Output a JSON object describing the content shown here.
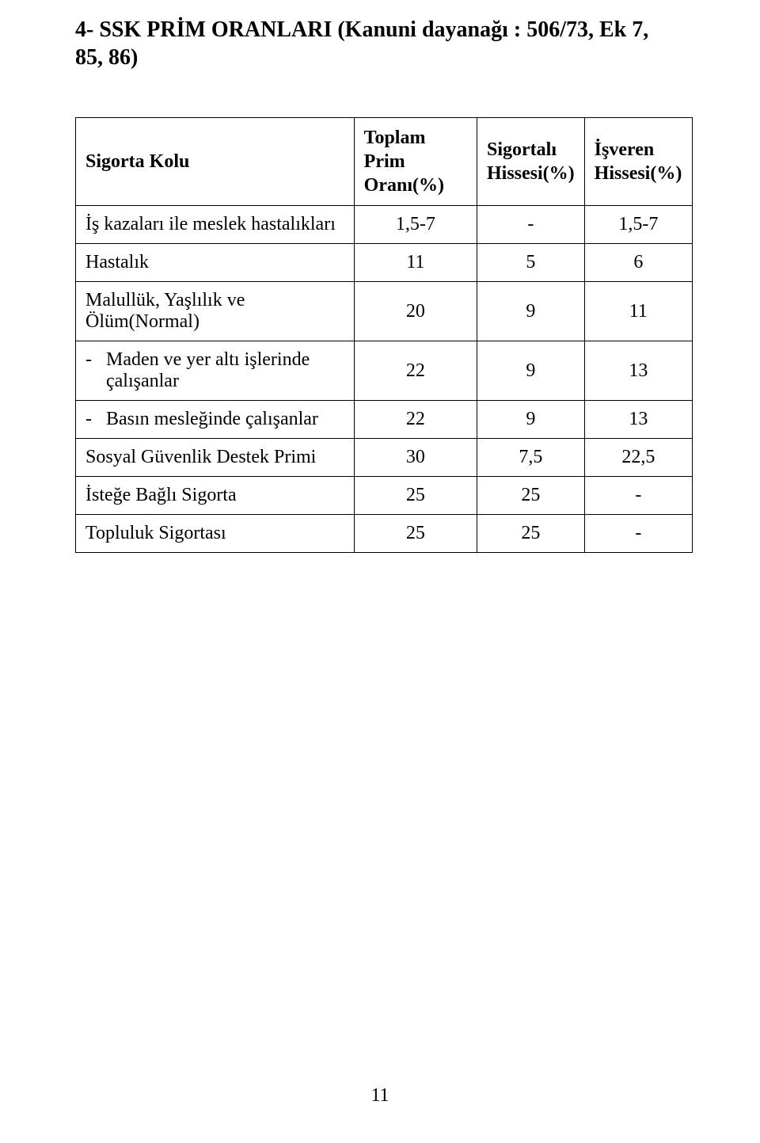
{
  "title_line1": "4- SSK PRİM ORANLARI (Kanuni dayanağı : 506/73, Ek 7,",
  "title_line2": "85, 86)",
  "headers": {
    "col1": "Sigorta Kolu",
    "col2a": "Toplam Prim",
    "col2b": "Oranı(%)",
    "col3a": "Sigortalı",
    "col3b": "Hissesi(%)",
    "col4a": "İşveren",
    "col4b": "Hissesi(%)"
  },
  "rows": [
    {
      "label": "İş kazaları ile meslek hastalıkları",
      "c2": "1,5-7",
      "c3": "-",
      "c4": "1,5-7"
    },
    {
      "label": "Hastalık",
      "c2": "11",
      "c3": "5",
      "c4": "6"
    },
    {
      "label": "Malullük, Yaşlılık ve Ölüm(Normal)",
      "c2": "20",
      "c3": "9",
      "c4": "11"
    },
    {
      "dash": "-",
      "label": "Maden ve yer altı işlerinde çalışanlar",
      "c2": "22",
      "c3": "9",
      "c4": "13"
    },
    {
      "dash": "-",
      "label": "Basın mesleğinde çalışanlar",
      "c2": "22",
      "c3": "9",
      "c4": "13"
    },
    {
      "label": "Sosyal Güvenlik Destek Primi",
      "c2": "30",
      "c3": "7,5",
      "c4": "22,5"
    },
    {
      "label": "İsteğe Bağlı Sigorta",
      "c2": "25",
      "c3": "25",
      "c4": "-"
    },
    {
      "label": "Topluluk Sigortası",
      "c2": "25",
      "c3": "25",
      "c4": "-"
    }
  ],
  "page_number": "11"
}
